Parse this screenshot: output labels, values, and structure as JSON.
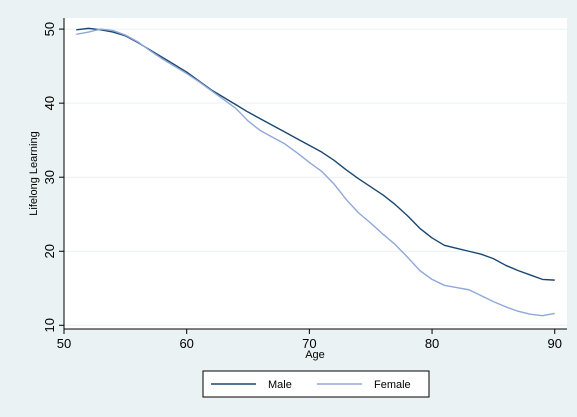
{
  "colors": {
    "background": "#eaf2f3",
    "plot_background": "#ffffff",
    "grid": "#eaf2f3",
    "male": "#1a476f",
    "female": "#90a8d8"
  },
  "chart_data": {
    "type": "line",
    "title": "",
    "xlabel": "Age",
    "ylabel": "Lifelong Learning",
    "xlim": [
      50,
      91
    ],
    "ylim": [
      9.5,
      51.5
    ],
    "xticks": [
      50,
      60,
      70,
      80,
      90
    ],
    "yticks": [
      10,
      20,
      30,
      40,
      50
    ],
    "grid": true,
    "legend_position": "bottom",
    "series": [
      {
        "name": "Male",
        "color": "#1a476f",
        "x": [
          51,
          52,
          53,
          54,
          55,
          56,
          57,
          58,
          59,
          60,
          61,
          62,
          63,
          64,
          65,
          66,
          67,
          68,
          69,
          70,
          71,
          72,
          73,
          74,
          75,
          76,
          77,
          78,
          79,
          80,
          81,
          82,
          83,
          84,
          85,
          86,
          87,
          88,
          89,
          90
        ],
        "y": [
          49.9,
          50.1,
          49.9,
          49.6,
          49.1,
          48.2,
          47.2,
          46.2,
          45.2,
          44.2,
          43.0,
          41.8,
          40.8,
          39.8,
          38.8,
          37.9,
          37.0,
          36.1,
          35.2,
          34.3,
          33.4,
          32.3,
          31.0,
          29.8,
          28.7,
          27.6,
          26.3,
          24.8,
          23.1,
          21.8,
          20.8,
          20.4,
          20.0,
          19.6,
          19.0,
          18.1,
          17.4,
          16.8,
          16.2,
          16.1
        ]
      },
      {
        "name": "Female",
        "color": "#90a8d8",
        "x": [
          51,
          52,
          53,
          54,
          55,
          56,
          57,
          58,
          59,
          60,
          61,
          62,
          63,
          64,
          65,
          66,
          67,
          68,
          69,
          70,
          71,
          72,
          73,
          74,
          75,
          76,
          77,
          78,
          79,
          80,
          81,
          82,
          83,
          84,
          85,
          86,
          87,
          88,
          89,
          90
        ],
        "y": [
          49.3,
          49.6,
          50.0,
          49.8,
          49.2,
          48.3,
          47.1,
          46.0,
          45.0,
          44.0,
          42.9,
          41.7,
          40.5,
          39.3,
          37.6,
          36.3,
          35.4,
          34.5,
          33.3,
          32.0,
          30.8,
          29.1,
          27.0,
          25.2,
          23.8,
          22.3,
          20.9,
          19.2,
          17.4,
          16.2,
          15.4,
          15.1,
          14.8,
          14.0,
          13.2,
          12.5,
          11.9,
          11.5,
          11.3,
          11.6
        ]
      }
    ]
  }
}
